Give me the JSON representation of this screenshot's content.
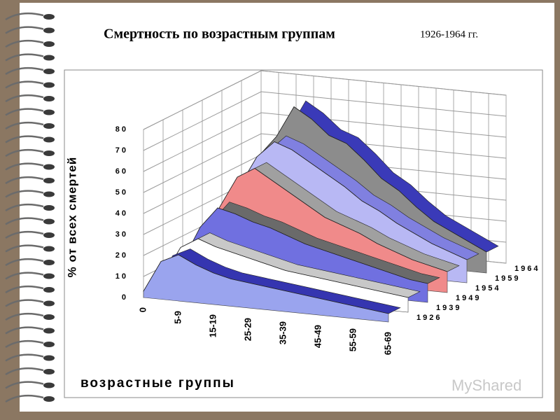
{
  "chart_data": {
    "type": "area3d",
    "title": "Смертность по возрастным группам",
    "subtitle": "1926-1964 гг.",
    "y_label": "% от всех смертей",
    "x_label": "возрастные группы",
    "categories": [
      "0",
      null,
      "5-9",
      null,
      "15-19",
      null,
      "25-29",
      null,
      "35-39",
      null,
      "45-49",
      null,
      "55-59",
      null,
      "65-69"
    ],
    "series": [
      {
        "name": "1926",
        "color": "#9aa4ee",
        "edge": "#3535b0",
        "values": [
          3,
          18,
          22,
          18,
          15,
          13,
          12,
          11,
          10,
          9,
          8,
          7,
          6,
          5,
          4
        ]
      },
      {
        "name": "1939",
        "color": "#ffffff",
        "edge": "#c8c8c8",
        "values": [
          5,
          20,
          25,
          22,
          20,
          18,
          16,
          14,
          13,
          12,
          11,
          10,
          9,
          8,
          7
        ]
      },
      {
        "name": "1949",
        "color": "#7070e0",
        "edge": "#6a6a6a",
        "values": [
          8,
          25,
          35,
          33,
          30,
          28,
          25,
          22,
          20,
          18,
          16,
          14,
          12,
          10,
          9
        ]
      },
      {
        "name": "1954",
        "color": "#f08a8a",
        "edge": "#a0a0a0",
        "values": [
          10,
          30,
          45,
          50,
          45,
          40,
          35,
          30,
          27,
          24,
          20,
          17,
          14,
          12,
          10
        ]
      },
      {
        "name": "1959",
        "color": "#b8b8f4",
        "edge": "#8080e0",
        "values": [
          12,
          35,
          50,
          58,
          55,
          50,
          45,
          40,
          34,
          30,
          25,
          21,
          17,
          14,
          11
        ]
      },
      {
        "name": "1964",
        "color": "#8c8c8c",
        "edge": "#3a3ab8",
        "values": [
          15,
          45,
          55,
          70,
          65,
          58,
          55,
          48,
          40,
          35,
          28,
          22,
          18,
          14,
          10
        ]
      }
    ],
    "ylim": [
      0,
      80
    ],
    "yticks": [
      0,
      10,
      20,
      30,
      40,
      50,
      60,
      70,
      80
    ],
    "grid": true,
    "watermark": "MyShared"
  }
}
